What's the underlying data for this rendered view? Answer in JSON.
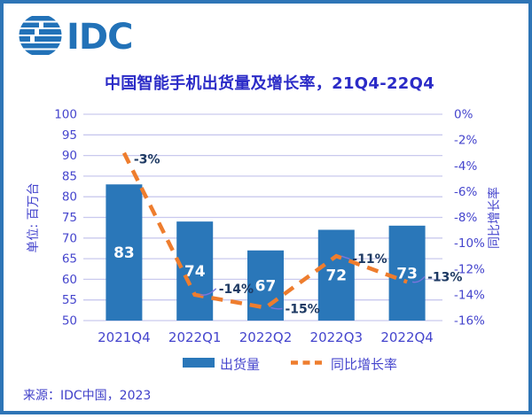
{
  "page": {
    "background": "#FFFFFF",
    "border_color": "#2E75B6"
  },
  "logo": {
    "text": "IDC",
    "color": "#2272B8"
  },
  "title": {
    "text": "中国智能手机出货量及增长率，21Q4-22Q4",
    "color": "#2B2BC7"
  },
  "source": {
    "text": "来源：IDC中国，2023"
  },
  "chart_data": {
    "type": "bar",
    "title": "中国智能手机出货量及增长率，21Q4-22Q4",
    "categories": [
      "2021Q4",
      "2022Q1",
      "2022Q2",
      "2022Q3",
      "2022Q4"
    ],
    "series": [
      {
        "name": "出货量",
        "type": "bar",
        "axis": "left",
        "color": "#2A77B9",
        "values": [
          83,
          74,
          67,
          72,
          73
        ],
        "value_labels": [
          "83",
          "74",
          "67",
          "72",
          "73"
        ]
      },
      {
        "name": "同比增长率",
        "type": "line",
        "style": "dashed",
        "axis": "right",
        "color": "#EE7D2E",
        "values": [
          -3,
          -14,
          -15,
          -11,
          -13
        ],
        "value_labels": [
          "-3%",
          "-14%",
          "-15%",
          "-11%",
          "-13%"
        ]
      }
    ],
    "left_axis": {
      "title": "单位: 百万台",
      "min": 50,
      "max": 100,
      "step": 5,
      "tick_labels": [
        "100",
        "95",
        "90",
        "85",
        "80",
        "75",
        "70",
        "65",
        "60",
        "55",
        "50"
      ]
    },
    "right_axis": {
      "title": "同比增长率",
      "min": -16,
      "max": 0,
      "step": 2,
      "tick_labels": [
        "0%",
        "-2%",
        "-4%",
        "-6%",
        "-8%",
        "-10%",
        "-12%",
        "-14%",
        "-16%"
      ]
    },
    "legend": {
      "position": "bottom",
      "items": [
        {
          "label": "出货量",
          "swatch": "bar"
        },
        {
          "label": "同比增长率",
          "swatch": "dashed-line"
        }
      ]
    },
    "grid": true,
    "colors": {
      "grid": "#C9C9EE",
      "tick_text": "#4545CD",
      "data_label": "#1E3A63",
      "bar_value_label": "#FFFFFF",
      "leader_line": "#7B74DC"
    }
  }
}
